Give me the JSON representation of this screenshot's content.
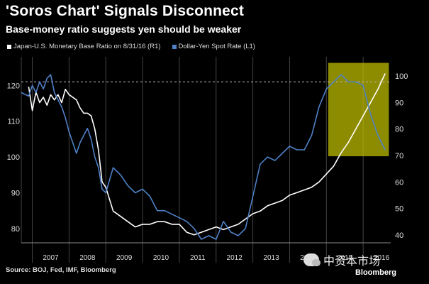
{
  "chart_data": {
    "type": "line",
    "title": "'Soros Chart' Signals Disconnect",
    "subtitle": "Base-money ratio suggests yen should be weaker",
    "left_axis": {
      "ticks": [
        80,
        90,
        100,
        110,
        120
      ],
      "range": [
        76,
        128
      ]
    },
    "right_axis": {
      "ticks": [
        40,
        50,
        60,
        70,
        80,
        90,
        100
      ],
      "range": [
        37.0,
        107.3
      ]
    },
    "x_range": [
      2006.7,
      2016.75
    ],
    "x_ticks": [
      "2007",
      "2008",
      "2009",
      "2010",
      "2011",
      "2012",
      "2013",
      "2014",
      "2015",
      "2016"
    ],
    "reference_line": {
      "axis": "L1",
      "value": 121
    },
    "highlight": {
      "x": [
        2015.05,
        2016.7
      ],
      "color": "#c4c000"
    },
    "series": [
      {
        "name": "Japan-U.S. Monetary Base Ratio on 8/31/16 (R1)",
        "axis": "R1",
        "color": "#ffffff",
        "x": [
          2006.9,
          2007.0,
          2007.1,
          2007.2,
          2007.3,
          2007.4,
          2007.5,
          2007.6,
          2007.7,
          2007.8,
          2007.9,
          2008.0,
          2008.1,
          2008.2,
          2008.3,
          2008.4,
          2008.5,
          2008.6,
          2008.7,
          2008.8,
          2008.9,
          2009.0,
          2009.2,
          2009.4,
          2009.6,
          2009.8,
          2010.0,
          2010.2,
          2010.4,
          2010.6,
          2010.8,
          2011.0,
          2011.2,
          2011.4,
          2011.6,
          2011.8,
          2012.0,
          2012.2,
          2012.4,
          2012.6,
          2012.8,
          2013.0,
          2013.2,
          2013.4,
          2013.6,
          2013.8,
          2014.0,
          2014.2,
          2014.4,
          2014.6,
          2014.8,
          2015.0,
          2015.2,
          2015.4,
          2015.6,
          2015.8,
          2016.0,
          2016.2,
          2016.4,
          2016.6
        ],
        "values": [
          96,
          87,
          94,
          90,
          92,
          89,
          93,
          91,
          93,
          90,
          95,
          93,
          92,
          91,
          88,
          86,
          86,
          85,
          80,
          72,
          60,
          58,
          49,
          47,
          45,
          43,
          44,
          44,
          45,
          45,
          44,
          44,
          41,
          40,
          41,
          42,
          43,
          42,
          43,
          44,
          46,
          48,
          49,
          51,
          52,
          53,
          55,
          56,
          57,
          58,
          60,
          63,
          66,
          71,
          75,
          80,
          85,
          90,
          95,
          101
        ]
      },
      {
        "name": "Dollar-Yen Spot Rate (L1)",
        "axis": "L1",
        "color": "#4f81c7",
        "x": [
          2006.7,
          2006.9,
          2007.0,
          2007.1,
          2007.2,
          2007.3,
          2007.4,
          2007.5,
          2007.6,
          2007.7,
          2007.8,
          2007.9,
          2008.0,
          2008.1,
          2008.2,
          2008.3,
          2008.4,
          2008.5,
          2008.6,
          2008.7,
          2008.8,
          2008.9,
          2009.0,
          2009.2,
          2009.4,
          2009.6,
          2009.8,
          2010.0,
          2010.2,
          2010.4,
          2010.6,
          2010.8,
          2011.0,
          2011.2,
          2011.4,
          2011.6,
          2011.8,
          2012.0,
          2012.2,
          2012.4,
          2012.6,
          2012.8,
          2013.0,
          2013.2,
          2013.4,
          2013.6,
          2013.8,
          2014.0,
          2014.2,
          2014.4,
          2014.6,
          2014.8,
          2015.0,
          2015.2,
          2015.4,
          2015.6,
          2015.8,
          2016.0,
          2016.2,
          2016.4,
          2016.6
        ],
        "values": [
          118,
          117,
          120,
          118,
          121,
          119,
          122,
          123,
          118,
          116,
          114,
          111,
          107,
          104,
          101,
          104,
          106,
          108,
          105,
          100,
          97,
          91,
          90,
          97,
          95,
          92,
          90,
          91,
          89,
          85,
          85,
          84,
          83,
          82,
          80,
          77,
          78,
          77,
          82,
          79,
          78,
          80,
          89,
          98,
          100,
          99,
          101,
          103,
          102,
          102,
          106,
          114,
          119,
          121,
          123,
          121,
          121,
          120,
          112,
          106,
          102
        ]
      }
    ]
  },
  "source": "Source: BOJ, Fed, IMF, Bloomberg",
  "brand": "Bloomberg",
  "watermark": "中资本市场"
}
